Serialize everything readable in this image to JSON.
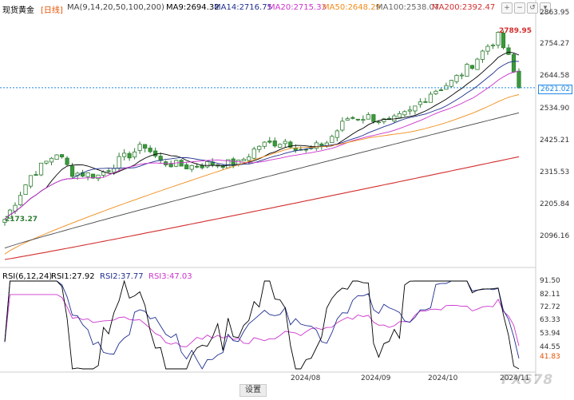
{
  "header": {
    "symbol": "现货黄金",
    "period": "[日线]",
    "ma_group": "MA(9,14,20,50,100,200)",
    "ma9": "MA9:2694.32",
    "ma14": "MA14:2716.75",
    "ma20": "MA20:2715.33",
    "ma50": "MA50:2648.29",
    "ma100": "MA100:2538.07",
    "ma200": "MA200:2392.47"
  },
  "rsi_header": {
    "group": "RSI(6,12,24)",
    "rsi1": "RSI1:27.92",
    "rsi2": "RSI2:37.77",
    "rsi3": "RSI3:47.03"
  },
  "annotations": {
    "high": "2789.95",
    "low": "2173.27",
    "last_price": "2621.02",
    "rsi_last": "41.83"
  },
  "price_axis": [
    "2863.95",
    "2754.27",
    "2644.58",
    "2534.90",
    "2425.21",
    "2315.53",
    "2205.84",
    "2096.16"
  ],
  "rsi_axis": [
    "91.50",
    "82.11",
    "72.72",
    "63.33",
    "53.94",
    "44.55"
  ],
  "time_axis": [
    "2024/08",
    "2024/09",
    "2024/10",
    "2024/11"
  ],
  "settings_label": "设置",
  "watermark": "FX678",
  "colors": {
    "up": "#4caf50",
    "down": "#4caf50",
    "ma9": "#000000",
    "ma14": "#1f2f8f",
    "ma20": "#cc33cc",
    "ma50": "#f08c1a",
    "ma100": "#444444",
    "ma200": "#d32f2f",
    "rsi1": "#000000",
    "rsi2": "#1f2f8f",
    "rsi3": "#cc33cc",
    "last_line": "#1e88e5"
  },
  "chart_data": [
    {
      "type": "candlestick",
      "title": "现货黄金 [日线]",
      "x_range": [
        "2024-06-18",
        "2024-11-15"
      ],
      "ylim": [
        2060,
        2880
      ],
      "series": [
        {
          "name": "MA9",
          "values": []
        },
        {
          "name": "MA200",
          "start": 2050,
          "end": 2392.47
        }
      ],
      "candles_approx": [
        [
          2190,
          2173,
          2200,
          2280
        ],
        [
          2280,
          2260,
          2420,
          2440
        ],
        [
          2320,
          2300,
          2290,
          2330
        ],
        [
          2340,
          2300,
          2350,
          2360
        ],
        [
          2380,
          2290,
          2340,
          2400
        ],
        [
          2360,
          2330,
          2380,
          2470
        ],
        [
          2440,
          2390,
          2430,
          2460
        ],
        [
          2390,
          2340,
          2380,
          2410
        ],
        [
          2400,
          2330,
          2380,
          2420
        ],
        [
          2400,
          2330,
          2350,
          2410
        ],
        [
          2380,
          2320,
          2380,
          2410
        ],
        [
          2410,
          2380,
          2440,
          2460
        ],
        [
          2460,
          2380,
          2420,
          2480
        ],
        [
          2480,
          2440,
          2500,
          2525
        ],
        [
          2500,
          2470,
          2510,
          2520
        ],
        [
          2520,
          2490,
          2520,
          2550
        ],
        [
          2560,
          2510,
          2550,
          2590
        ],
        [
          2590,
          2560,
          2620,
          2660
        ],
        [
          2650,
          2610,
          2640,
          2680
        ],
        [
          2660,
          2600,
          2630,
          2680
        ],
        [
          2660,
          2620,
          2700,
          2720
        ],
        [
          2730,
          2690,
          2740,
          2790
        ],
        [
          2750,
          2650,
          2680,
          2760
        ],
        [
          2690,
          2640,
          2700,
          2710
        ],
        [
          2680,
          2600,
          2621,
          2690
        ]
      ]
    },
    {
      "type": "line",
      "title": "RSI(6,12,24)",
      "ylim": [
        30,
        95
      ],
      "series": [
        {
          "name": "RSI1",
          "last": 27.92
        },
        {
          "name": "RSI2",
          "last": 37.77
        },
        {
          "name": "RSI3",
          "last": 47.03
        }
      ]
    }
  ]
}
